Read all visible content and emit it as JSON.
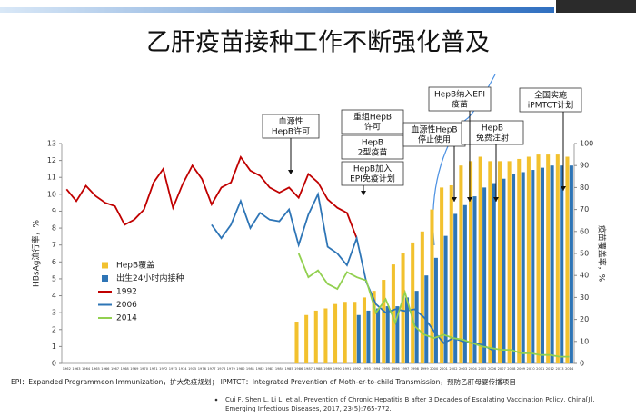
{
  "title": "乙肝疫苗接种工作不断强化普及",
  "chart_data": {
    "type": "bar",
    "y_label": "HBsAg流行率，%",
    "y2_label": "疫苗覆盖率，%",
    "categories": [
      "1962",
      "1963",
      "1964",
      "1965",
      "1966",
      "1967",
      "1968",
      "1969",
      "1970",
      "1971",
      "1972",
      "1973",
      "1974",
      "1975",
      "1976",
      "1977",
      "1978",
      "1979",
      "1980",
      "1981",
      "1982",
      "1983",
      "1984",
      "1985",
      "1986",
      "1987",
      "1988",
      "1989",
      "1990",
      "1991",
      "1992",
      "1993",
      "1994",
      "1995",
      "1996",
      "1997",
      "1998",
      "1999",
      "2000",
      "2001",
      "2002",
      "2003",
      "2004",
      "2005",
      "2006",
      "2007",
      "2008",
      "2009",
      "2010",
      "2011",
      "2012",
      "2013",
      "2014"
    ],
    "ylim": [
      0,
      13
    ],
    "yticks": [
      0,
      1,
      2,
      3,
      4,
      5,
      6,
      7,
      8,
      9,
      10,
      11,
      12,
      13
    ],
    "y2lim": [
      0,
      100
    ],
    "y2ticks": [
      0,
      10,
      20,
      30,
      40,
      50,
      60,
      70,
      80,
      90,
      100
    ],
    "legend": "left",
    "series": [
      {
        "name": "HepB覆盖",
        "type": "bar",
        "axis": "y2",
        "color": "#f2c12e",
        "values": [
          null,
          null,
          null,
          null,
          null,
          null,
          null,
          null,
          null,
          null,
          null,
          null,
          null,
          null,
          null,
          null,
          null,
          null,
          null,
          null,
          null,
          null,
          null,
          null,
          19,
          22,
          24,
          25,
          27,
          28,
          28,
          30,
          33,
          38,
          45,
          50,
          55,
          60,
          70,
          80,
          81,
          90,
          92,
          94,
          92,
          92,
          92,
          93,
          94,
          95,
          95,
          95,
          94
        ]
      },
      {
        "name": "出生24小时内接种",
        "type": "bar",
        "axis": "y2",
        "color": "#2e75b6",
        "values": [
          null,
          null,
          null,
          null,
          null,
          null,
          null,
          null,
          null,
          null,
          null,
          null,
          null,
          null,
          null,
          null,
          null,
          null,
          null,
          null,
          null,
          null,
          null,
          null,
          null,
          null,
          null,
          null,
          null,
          null,
          22,
          24,
          25,
          26,
          26,
          30,
          33,
          40,
          48,
          58,
          68,
          72,
          76,
          80,
          82,
          84,
          86,
          87,
          88,
          89,
          90,
          90,
          90
        ]
      },
      {
        "name": "1992",
        "type": "line",
        "color": "#c00000",
        "values": [
          10.3,
          9.6,
          10.5,
          9.9,
          9.5,
          9.3,
          8.2,
          8.5,
          9.1,
          10.7,
          11.5,
          9.2,
          10.6,
          11.7,
          10.9,
          9.4,
          10.4,
          10.7,
          12.2,
          11.4,
          11.1,
          10.4,
          10.1,
          10.4,
          9.8,
          11.2,
          10.7,
          9.7,
          9.2,
          8.9,
          7.4,
          null,
          null,
          null,
          null,
          null,
          null,
          null,
          null,
          null,
          null,
          null,
          null,
          null,
          null,
          null,
          null,
          null,
          null,
          null,
          null,
          null,
          null
        ]
      },
      {
        "name": "2006",
        "type": "line",
        "color": "#2e75b6",
        "values": [
          null,
          null,
          null,
          null,
          null,
          null,
          null,
          null,
          null,
          null,
          null,
          null,
          null,
          null,
          null,
          8.2,
          7.4,
          8.2,
          9.6,
          8.0,
          8.9,
          8.5,
          8.4,
          9.1,
          7.0,
          8.8,
          10.0,
          6.9,
          6.5,
          5.8,
          7.4,
          4.8,
          3.5,
          3.0,
          3.2,
          3.1,
          3.2,
          2.7,
          1.9,
          1.2,
          1.5,
          1.3,
          1.2,
          1.1,
          0.8,
          null,
          null,
          null,
          null,
          null,
          null,
          null,
          null
        ]
      },
      {
        "name": "2014",
        "type": "line",
        "color": "#92d050",
        "values": [
          null,
          null,
          null,
          null,
          null,
          null,
          null,
          null,
          null,
          null,
          null,
          null,
          null,
          null,
          null,
          null,
          null,
          null,
          null,
          null,
          null,
          null,
          null,
          null,
          6.5,
          5.1,
          5.5,
          4.7,
          4.4,
          5.4,
          5.1,
          4.9,
          3.0,
          3.8,
          2.4,
          4.2,
          2.2,
          1.7,
          1.5,
          1.7,
          1.5,
          1.4,
          1.2,
          1.0,
          0.9,
          0.8,
          0.8,
          0.6,
          0.6,
          0.5,
          0.5,
          0.4,
          0.4
        ]
      }
    ],
    "annotations": [
      [
        "血源性",
        "HepB许可"
      ],
      [
        "重组HepB",
        "许可"
      ],
      [
        "HepB",
        "2型疫苗"
      ],
      [
        "HepB加入",
        "EPI免疫计划"
      ],
      [
        "血源性HepB",
        "停止使用"
      ],
      [
        "HepB",
        "免费注射"
      ],
      [
        "HepB纳入EPI",
        "疫苗"
      ],
      [
        "全国实施",
        "iPMTCT计划"
      ]
    ]
  },
  "footnotes": [
    "EPI：Expanded Programmeon Immunization，扩大免疫规划； IPMTCT：Integrated Prevention of Moth-er-to-child Transmission，预防乙肝母婴传播项目"
  ],
  "reference": [
    "Cui F, Shen L, Li L, et al. Prevention of Chronic Hepatitis B after 3 Decades of Escalating Vaccination Policy, China[J].",
    "Emerging Infectious Diseases, 2017, 23(5):765-772."
  ]
}
